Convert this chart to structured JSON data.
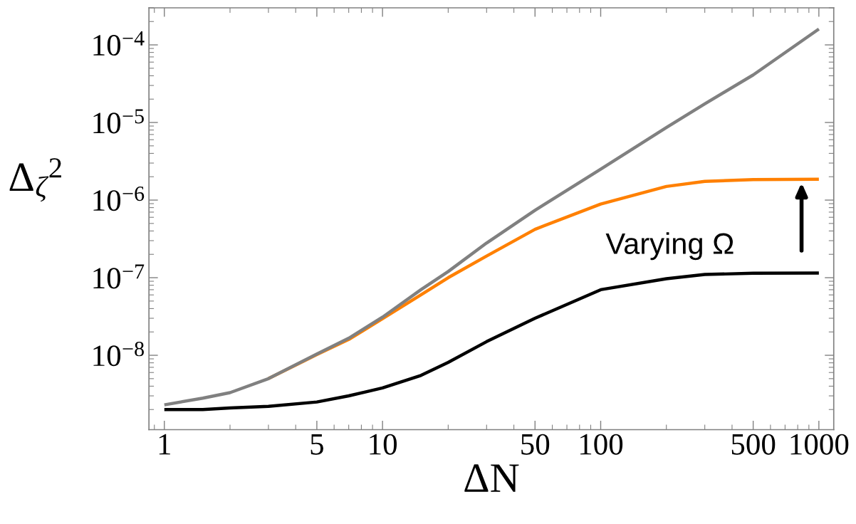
{
  "chart_data": {
    "type": "line",
    "xlabel": "ΔN",
    "ylabel": "Δ$_{ζ}$$^{2}$",
    "log": "xy",
    "grid": false,
    "line_style": "solid",
    "x": [
      1,
      1.5,
      2,
      3,
      5,
      7,
      10,
      15,
      20,
      30,
      50,
      100,
      200,
      300,
      500,
      1000
    ],
    "series": [
      {
        "color": "#808080",
        "values": [
          2.3e-09,
          2.8e-09,
          3.3e-09,
          5e-09,
          1.04e-08,
          1.66e-08,
          3.1e-08,
          7e-08,
          1.2e-07,
          2.8e-07,
          7.4e-07,
          2.5e-06,
          8.6e-06,
          1.74e-05,
          4.1e-05,
          0.00016
        ]
      },
      {
        "color": "#ff8000",
        "values": [
          null,
          null,
          null,
          5e-09,
          1.02e-08,
          1.6e-08,
          2.96e-08,
          6e-08,
          1e-07,
          1.9e-07,
          4.2e-07,
          8.9e-07,
          1.5e-06,
          1.74e-06,
          1.84e-06,
          1.86e-06
        ]
      },
      {
        "color": "#000000",
        "values": [
          2e-09,
          2e-09,
          2.1e-09,
          2.2e-09,
          2.5e-09,
          3e-09,
          3.8e-09,
          5.5e-09,
          8.1e-09,
          1.5e-08,
          3e-08,
          7e-08,
          9.7e-08,
          1.1e-07,
          1.14e-07,
          1.15e-07
        ]
      }
    ],
    "xlim": [
      0.85,
      1170
    ],
    "ylim": [
      1.1e-09,
      0.0003
    ],
    "xticks": [
      1,
      5,
      10,
      50,
      100,
      500,
      1000
    ],
    "yticks": [
      {
        "value": 1e-08,
        "label": "10$^{−8}$"
      },
      {
        "value": 1e-07,
        "label": "10$^{−7}$"
      },
      {
        "value": 1e-06,
        "label": "10$^{−6}$"
      },
      {
        "value": 1e-05,
        "label": "10$^{−5}$"
      },
      {
        "value": 0.0001,
        "label": "10$^{−4}$"
      }
    ],
    "annotations": [
      "Varying Ω"
    ]
  }
}
